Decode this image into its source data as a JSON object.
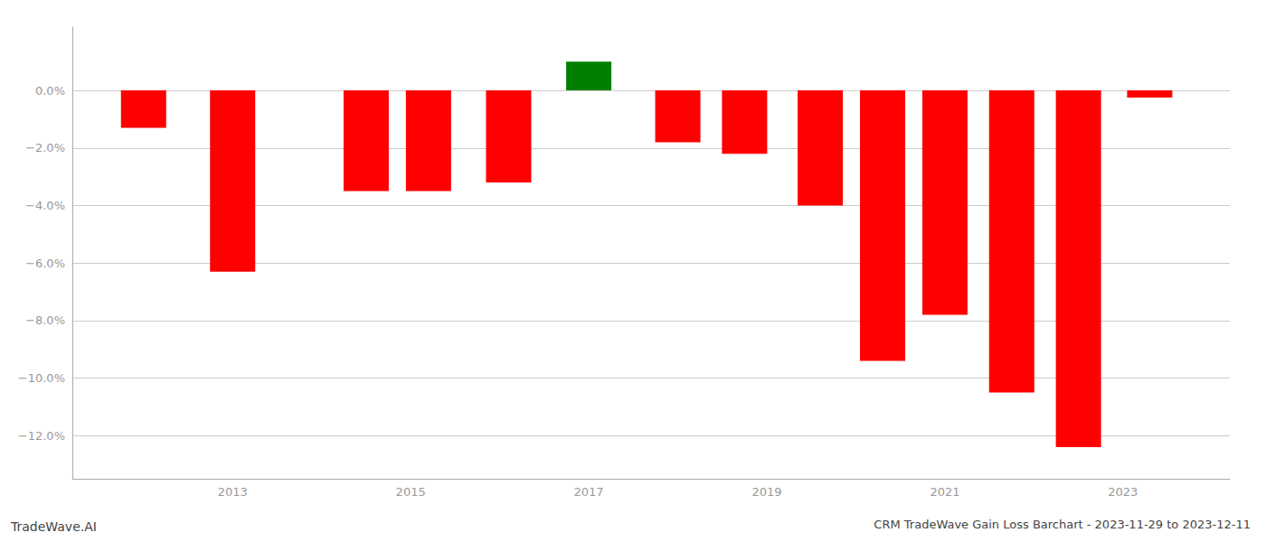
{
  "chart_data": {
    "type": "bar",
    "title": "CRM TradeWave Gain Loss Barchart - 2023-11-29 to 2023-12-11",
    "annotations": [
      "TradeWave.AI"
    ],
    "x": [
      2012.0,
      2013.0,
      2014.5,
      2015.2,
      2016.1,
      2017.0,
      2018.0,
      2018.75,
      2019.6,
      2020.3,
      2021.0,
      2021.75,
      2022.5,
      2023.3
    ],
    "values": [
      -1.3,
      -6.3,
      -3.5,
      -3.5,
      -3.2,
      1.0,
      -1.8,
      -2.2,
      -4.0,
      -9.4,
      -7.8,
      -10.5,
      -12.4,
      -0.25
    ],
    "colors": [
      "#ff0000",
      "#ff0000",
      "#ff0000",
      "#ff0000",
      "#ff0000",
      "#008000",
      "#ff0000",
      "#ff0000",
      "#ff0000",
      "#ff0000",
      "#ff0000",
      "#ff0000",
      "#ff0000",
      "#ff0000"
    ],
    "xlim": [
      2011.2,
      2024.2
    ],
    "xticks": [
      2013,
      2015,
      2017,
      2019,
      2021,
      2023
    ],
    "ylim": [
      -13.5,
      2.2
    ],
    "yticks": [
      {
        "value": 0.0,
        "label": "0.0%"
      },
      {
        "value": -2.0,
        "label": "−2.0%"
      },
      {
        "value": -4.0,
        "label": "−4.0%"
      },
      {
        "value": -6.0,
        "label": "−6.0%"
      },
      {
        "value": -8.0,
        "label": "−8.0%"
      },
      {
        "value": -10.0,
        "label": "−10.0%"
      },
      {
        "value": -12.0,
        "label": "−12.0%"
      }
    ],
    "grid": true
  }
}
